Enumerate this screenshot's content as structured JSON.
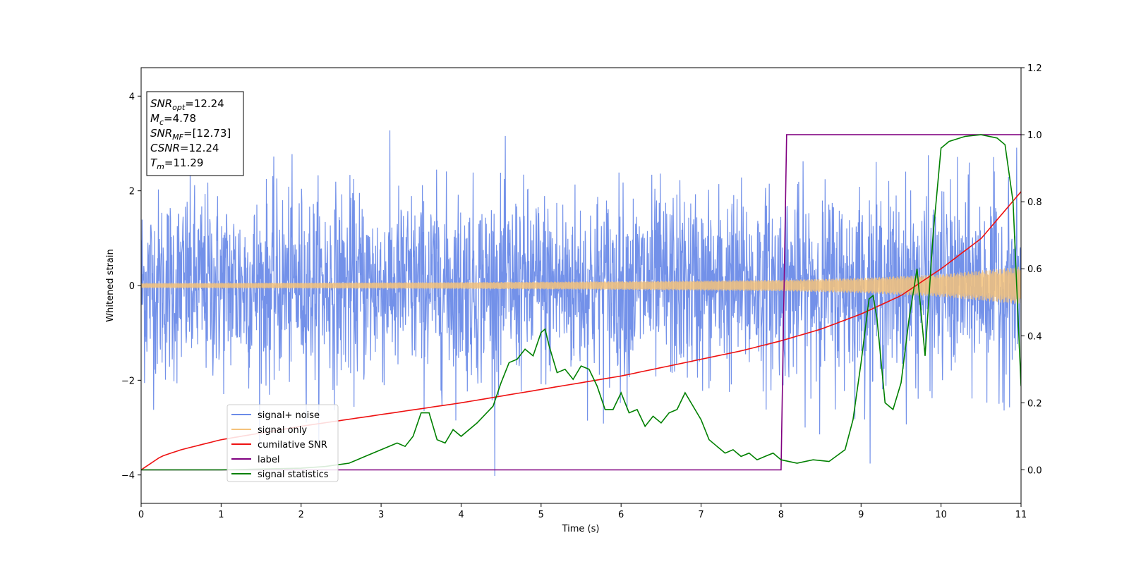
{
  "chart_data": {
    "type": "line",
    "xlabel": "Time (s)",
    "ylabel": "Whitened strain",
    "xlim": [
      0,
      11
    ],
    "ylim_left": [
      -4.6,
      4.6
    ],
    "ylim_right": [
      -0.1,
      1.2
    ],
    "x_ticks": [
      "0",
      "1",
      "2",
      "3",
      "4",
      "5",
      "6",
      "7",
      "8",
      "9",
      "10",
      "11"
    ],
    "y_left_ticks": [
      {
        "v": -4,
        "t": "−4"
      },
      {
        "v": -2,
        "t": "−2"
      },
      {
        "v": 0,
        "t": "0"
      },
      {
        "v": 2,
        "t": "2"
      },
      {
        "v": 4,
        "t": "4"
      }
    ],
    "y_right_ticks": [
      {
        "v": 0.0,
        "t": "0.0"
      },
      {
        "v": 0.2,
        "t": "0.2"
      },
      {
        "v": 0.4,
        "t": "0.4"
      },
      {
        "v": 0.6,
        "t": "0.6"
      },
      {
        "v": 0.8,
        "t": "0.8"
      },
      {
        "v": 1.0,
        "t": "1.0"
      },
      {
        "v": 1.2,
        "t": "1.2"
      }
    ],
    "grid": false,
    "legend_position": "lower-left",
    "series": [
      {
        "name": "signal+ noise",
        "axis": "left",
        "color": "#6b8be8",
        "kind": "noise",
        "description_values": {
          "amplitude_std": 1.0,
          "x_range": [
            0,
            11
          ]
        }
      },
      {
        "name": "signal only",
        "axis": "left",
        "color": "#f5c27a",
        "kind": "chirp",
        "envelope": {
          "x": [
            0,
            2,
            4,
            6,
            8,
            9,
            10,
            11
          ],
          "y": [
            0.05,
            0.06,
            0.07,
            0.09,
            0.12,
            0.16,
            0.24,
            0.4
          ]
        }
      },
      {
        "name": "cumilative SNR",
        "axis": "right",
        "color": "#ee1111",
        "x": [
          0,
          0.25,
          0.5,
          1,
          1.5,
          2,
          3,
          4,
          5,
          6,
          7,
          7.5,
          8,
          8.5,
          9,
          9.5,
          10,
          10.5,
          11
        ],
        "y": [
          0.0,
          0.04,
          0.06,
          0.09,
          0.11,
          0.13,
          0.165,
          0.2,
          0.24,
          0.28,
          0.33,
          0.355,
          0.385,
          0.42,
          0.465,
          0.52,
          0.6,
          0.69,
          0.83
        ]
      },
      {
        "name": "label",
        "axis": "right",
        "color": "#800080",
        "x": [
          0,
          8.0,
          8.07,
          11
        ],
        "y": [
          0,
          0,
          1,
          1
        ]
      },
      {
        "name": "signal statistics",
        "axis": "right",
        "color": "#008000",
        "x": [
          0,
          1,
          2,
          2.3,
          2.6,
          2.8,
          3.0,
          3.2,
          3.3,
          3.4,
          3.5,
          3.6,
          3.7,
          3.8,
          3.9,
          4.0,
          4.2,
          4.4,
          4.5,
          4.6,
          4.7,
          4.8,
          4.9,
          5.0,
          5.05,
          5.1,
          5.2,
          5.3,
          5.4,
          5.5,
          5.6,
          5.7,
          5.8,
          5.9,
          6.0,
          6.1,
          6.2,
          6.3,
          6.4,
          6.5,
          6.6,
          6.7,
          6.8,
          6.9,
          7.0,
          7.1,
          7.2,
          7.3,
          7.4,
          7.5,
          7.6,
          7.7,
          7.8,
          7.9,
          8.0,
          8.2,
          8.4,
          8.6,
          8.8,
          8.9,
          9.0,
          9.1,
          9.15,
          9.2,
          9.3,
          9.4,
          9.5,
          9.6,
          9.7,
          9.8,
          9.9,
          10.0,
          10.1,
          10.3,
          10.5,
          10.7,
          10.8,
          10.9,
          11.0
        ],
        "y": [
          0.0,
          0.0,
          0.005,
          0.01,
          0.02,
          0.04,
          0.06,
          0.08,
          0.07,
          0.1,
          0.17,
          0.17,
          0.09,
          0.08,
          0.12,
          0.1,
          0.14,
          0.19,
          0.26,
          0.32,
          0.33,
          0.36,
          0.34,
          0.41,
          0.42,
          0.37,
          0.29,
          0.3,
          0.27,
          0.31,
          0.3,
          0.25,
          0.18,
          0.18,
          0.23,
          0.17,
          0.18,
          0.13,
          0.16,
          0.14,
          0.17,
          0.18,
          0.23,
          0.19,
          0.15,
          0.09,
          0.07,
          0.05,
          0.06,
          0.04,
          0.05,
          0.03,
          0.04,
          0.05,
          0.03,
          0.02,
          0.03,
          0.025,
          0.06,
          0.15,
          0.32,
          0.51,
          0.52,
          0.45,
          0.2,
          0.18,
          0.26,
          0.45,
          0.6,
          0.34,
          0.7,
          0.96,
          0.98,
          0.995,
          1.0,
          0.99,
          0.97,
          0.8,
          0.25
        ]
      }
    ]
  },
  "info_box": {
    "lines": [
      {
        "var": "SNR",
        "sub": "opt",
        "value": "=12.24"
      },
      {
        "var": "M",
        "sub": "c",
        "value": "=4.78"
      },
      {
        "var": "SNR",
        "sub": "MF",
        "value": "=[12.73]"
      },
      {
        "var": "CSNR",
        "sub": "",
        "value": "=12.24"
      },
      {
        "var": "T",
        "sub": "m",
        "value": "=11.29"
      }
    ]
  }
}
